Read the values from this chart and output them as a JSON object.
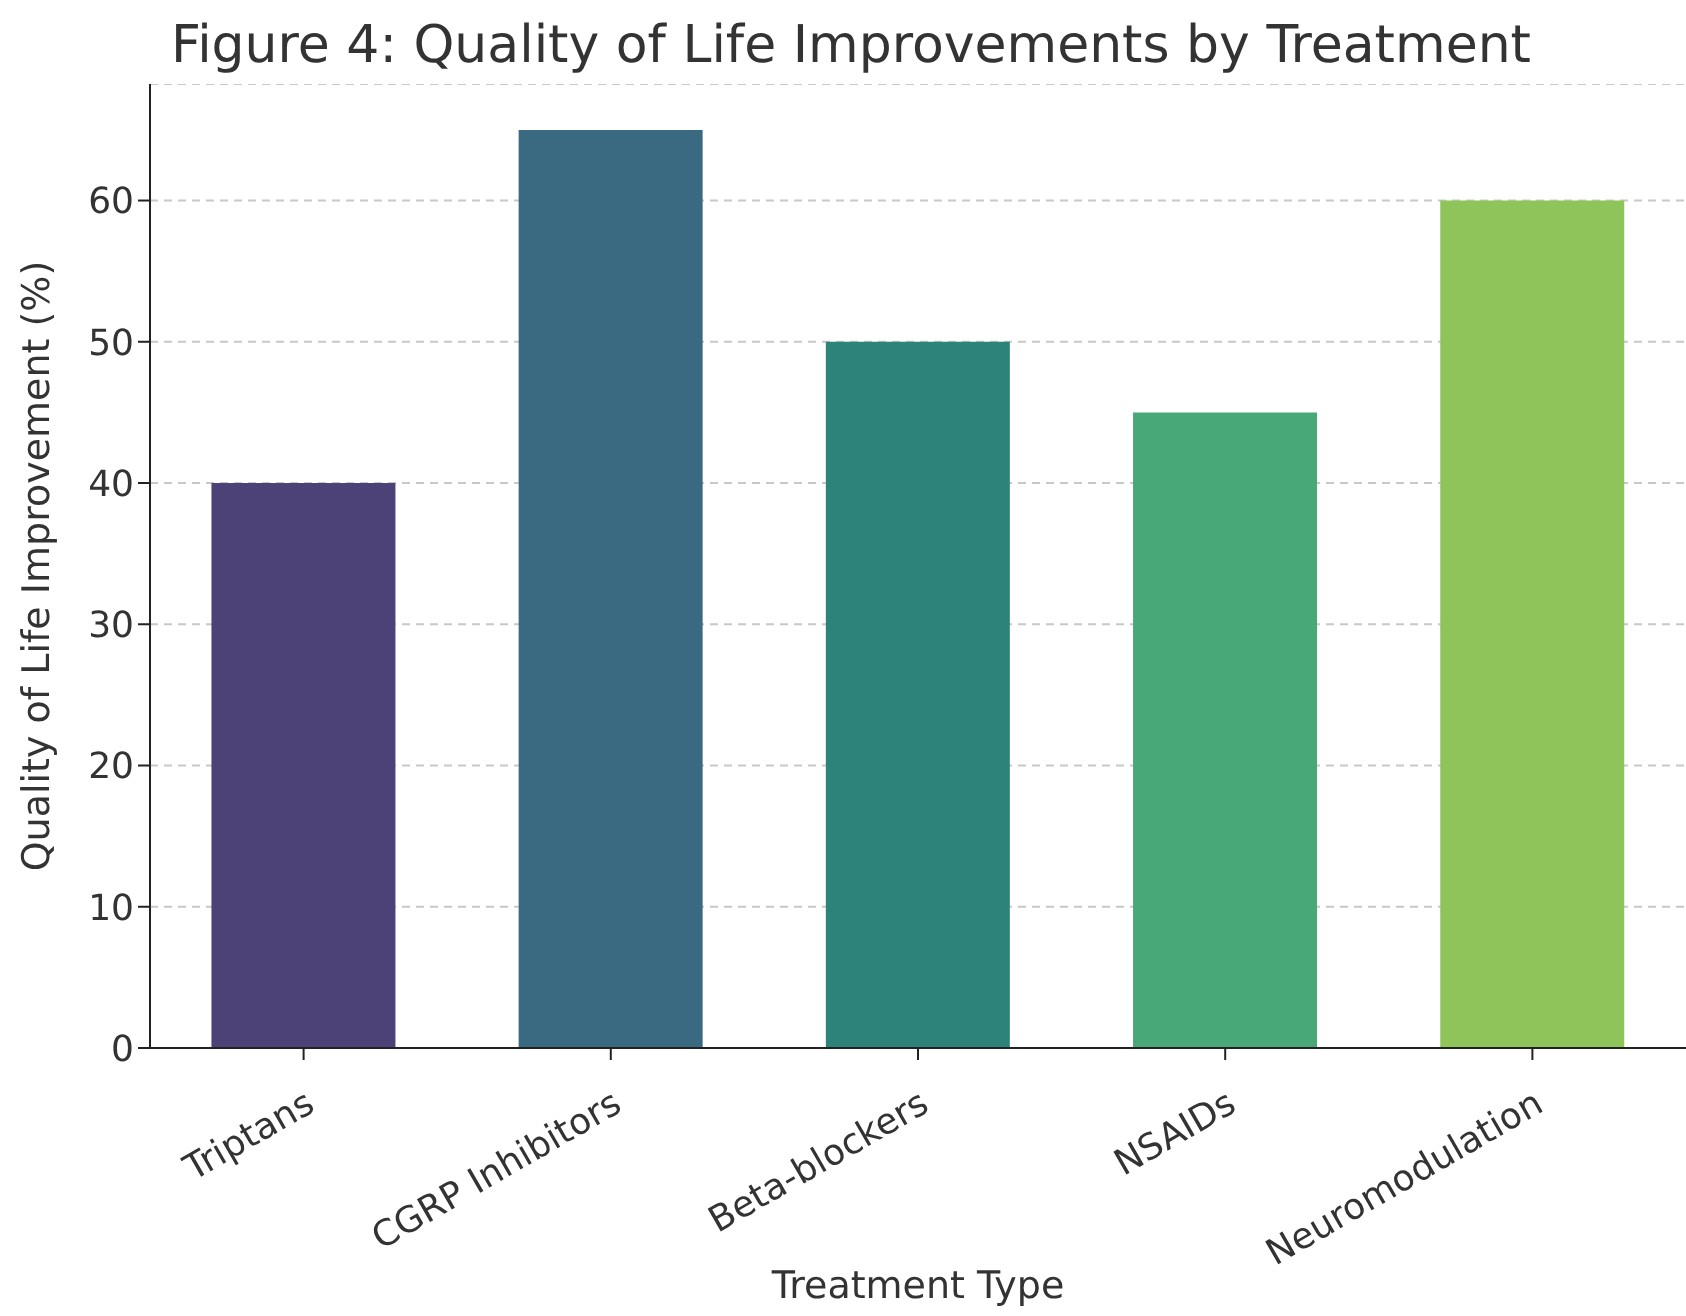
{
  "chart_data": {
    "type": "bar",
    "title": "Figure 4: Quality of Life Improvements by Treatment",
    "xlabel": "Treatment Type",
    "ylabel": "Quality of Life Improvement (%)",
    "categories": [
      "Triptans",
      "CGRP Inhibitors",
      "Beta-blockers",
      "NSAIDs",
      "Neuromodulation"
    ],
    "values": [
      40,
      65,
      50,
      45,
      60
    ],
    "colors": [
      "#4d4278",
      "#3a6a82",
      "#2d837a",
      "#48a878",
      "#8ec45a"
    ],
    "ylim": [
      0,
      68.25
    ],
    "yticks": [
      0,
      10,
      20,
      30,
      40,
      50,
      60
    ],
    "grid": "y"
  }
}
